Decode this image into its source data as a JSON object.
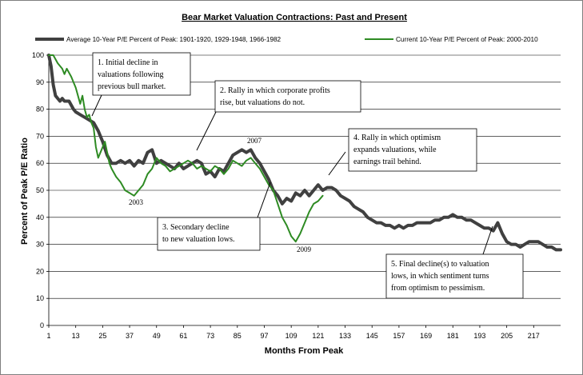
{
  "chart_data": {
    "type": "line",
    "title": "Bear Market Valuation Contractions: Past and Present",
    "xlabel": "Months From Peak",
    "ylabel": "Percent of Peak P/E Ratio",
    "xlim": [
      1,
      229
    ],
    "ylim": [
      0,
      100
    ],
    "grid": true,
    "legend_position": "top",
    "x_ticks": [
      "1",
      "13",
      "25",
      "37",
      "49",
      "61",
      "73",
      "85",
      "97",
      "109",
      "121",
      "133",
      "145",
      "157",
      "169",
      "181",
      "193",
      "205",
      "217"
    ],
    "y_ticks": [
      "0",
      "10",
      "20",
      "30",
      "40",
      "50",
      "60",
      "70",
      "80",
      "90",
      "100"
    ],
    "series": [
      {
        "name": "Average 10-Year P/E Percent of Peak: 1901-1920, 1929-1948, 1966-1982",
        "color": "#404040",
        "points": [
          [
            1,
            100
          ],
          [
            2,
            96
          ],
          [
            3,
            89
          ],
          [
            4,
            85
          ],
          [
            5,
            84
          ],
          [
            6,
            83
          ],
          [
            7,
            84
          ],
          [
            8,
            83
          ],
          [
            10,
            83
          ],
          [
            12,
            80
          ],
          [
            13,
            79
          ],
          [
            15,
            78
          ],
          [
            17,
            77
          ],
          [
            19,
            76
          ],
          [
            21,
            75
          ],
          [
            23,
            72
          ],
          [
            25,
            68
          ],
          [
            27,
            63
          ],
          [
            29,
            60
          ],
          [
            31,
            60
          ],
          [
            33,
            61
          ],
          [
            35,
            60
          ],
          [
            37,
            61
          ],
          [
            39,
            59
          ],
          [
            41,
            61
          ],
          [
            43,
            60
          ],
          [
            45,
            64
          ],
          [
            47,
            65
          ],
          [
            49,
            60
          ],
          [
            51,
            61
          ],
          [
            53,
            60
          ],
          [
            55,
            59
          ],
          [
            57,
            58
          ],
          [
            59,
            60
          ],
          [
            61,
            58
          ],
          [
            63,
            59
          ],
          [
            65,
            60
          ],
          [
            67,
            61
          ],
          [
            69,
            60
          ],
          [
            71,
            56
          ],
          [
            73,
            57
          ],
          [
            75,
            55
          ],
          [
            77,
            58
          ],
          [
            79,
            57
          ],
          [
            81,
            60
          ],
          [
            83,
            63
          ],
          [
            85,
            64
          ],
          [
            87,
            65
          ],
          [
            89,
            64
          ],
          [
            91,
            65
          ],
          [
            93,
            62
          ],
          [
            95,
            60
          ],
          [
            97,
            57
          ],
          [
            99,
            54
          ],
          [
            101,
            50
          ],
          [
            103,
            48
          ],
          [
            105,
            45
          ],
          [
            107,
            47
          ],
          [
            109,
            46
          ],
          [
            111,
            49
          ],
          [
            113,
            48
          ],
          [
            115,
            50
          ],
          [
            117,
            48
          ],
          [
            119,
            50
          ],
          [
            121,
            52
          ],
          [
            123,
            50
          ],
          [
            125,
            51
          ],
          [
            127,
            51
          ],
          [
            129,
            50
          ],
          [
            131,
            48
          ],
          [
            133,
            47
          ],
          [
            135,
            46
          ],
          [
            137,
            44
          ],
          [
            139,
            43
          ],
          [
            141,
            42
          ],
          [
            143,
            40
          ],
          [
            145,
            39
          ],
          [
            147,
            38
          ],
          [
            149,
            38
          ],
          [
            151,
            37
          ],
          [
            153,
            37
          ],
          [
            155,
            36
          ],
          [
            157,
            37
          ],
          [
            159,
            36
          ],
          [
            161,
            37
          ],
          [
            163,
            37
          ],
          [
            165,
            38
          ],
          [
            167,
            38
          ],
          [
            169,
            38
          ],
          [
            171,
            38
          ],
          [
            173,
            39
          ],
          [
            175,
            39
          ],
          [
            177,
            40
          ],
          [
            179,
            40
          ],
          [
            181,
            41
          ],
          [
            183,
            40
          ],
          [
            185,
            40
          ],
          [
            187,
            39
          ],
          [
            189,
            39
          ],
          [
            191,
            38
          ],
          [
            193,
            37
          ],
          [
            195,
            36
          ],
          [
            197,
            36
          ],
          [
            199,
            35
          ],
          [
            201,
            38
          ],
          [
            203,
            34
          ],
          [
            205,
            31
          ],
          [
            207,
            30
          ],
          [
            209,
            30
          ],
          [
            211,
            29
          ],
          [
            213,
            30
          ],
          [
            215,
            31
          ],
          [
            217,
            31
          ],
          [
            219,
            31
          ],
          [
            221,
            30
          ],
          [
            223,
            29
          ],
          [
            225,
            29
          ],
          [
            227,
            28
          ],
          [
            229,
            28
          ]
        ]
      },
      {
        "name": "Current 10-Year P/E Percent of Peak: 2000-2010",
        "color": "#2e8b23",
        "points": [
          [
            1,
            100
          ],
          [
            3,
            100
          ],
          [
            5,
            97
          ],
          [
            7,
            95
          ],
          [
            8,
            93
          ],
          [
            9,
            95
          ],
          [
            11,
            92
          ],
          [
            13,
            88
          ],
          [
            15,
            82
          ],
          [
            16,
            85
          ],
          [
            17,
            80
          ],
          [
            18,
            77
          ],
          [
            19,
            78
          ],
          [
            20,
            75
          ],
          [
            21,
            73
          ],
          [
            22,
            66
          ],
          [
            23,
            62
          ],
          [
            25,
            66
          ],
          [
            26,
            68
          ],
          [
            27,
            64
          ],
          [
            28,
            60
          ],
          [
            29,
            58
          ],
          [
            31,
            55
          ],
          [
            33,
            53
          ],
          [
            35,
            50
          ],
          [
            37,
            49
          ],
          [
            39,
            48
          ],
          [
            41,
            50
          ],
          [
            43,
            52
          ],
          [
            45,
            56
          ],
          [
            47,
            58
          ],
          [
            49,
            62
          ],
          [
            51,
            60
          ],
          [
            53,
            59
          ],
          [
            55,
            57
          ],
          [
            57,
            58
          ],
          [
            59,
            59
          ],
          [
            61,
            60
          ],
          [
            63,
            61
          ],
          [
            65,
            60
          ],
          [
            67,
            58
          ],
          [
            69,
            59
          ],
          [
            71,
            58
          ],
          [
            73,
            57
          ],
          [
            75,
            59
          ],
          [
            77,
            58
          ],
          [
            79,
            56
          ],
          [
            81,
            58
          ],
          [
            83,
            61
          ],
          [
            85,
            60
          ],
          [
            87,
            59
          ],
          [
            89,
            61
          ],
          [
            91,
            62
          ],
          [
            93,
            60
          ],
          [
            95,
            58
          ],
          [
            97,
            55
          ],
          [
            99,
            52
          ],
          [
            101,
            50
          ],
          [
            103,
            45
          ],
          [
            105,
            40
          ],
          [
            107,
            37
          ],
          [
            109,
            33
          ],
          [
            111,
            31
          ],
          [
            113,
            34
          ],
          [
            115,
            38
          ],
          [
            117,
            42
          ],
          [
            119,
            45
          ],
          [
            121,
            46
          ],
          [
            123,
            48
          ]
        ]
      }
    ],
    "annotations": [
      {
        "lines": [
          "1.  Initial decline in",
          "valuations following",
          "previous bull market."
        ]
      },
      {
        "lines": [
          "2.  Rally in which corporate profits",
          "rise, but valuations do not."
        ]
      },
      {
        "lines": [
          "3.  Secondary decline",
          "to new valuation lows."
        ]
      },
      {
        "lines": [
          "4.  Rally in which optimism",
          "expands valuations, while",
          "earnings trail behind."
        ]
      },
      {
        "lines": [
          "5.  Final decline(s) to valuation",
          "lows, in which sentiment turns",
          "from optimism to pessimism."
        ]
      }
    ],
    "year_labels": [
      "2007",
      "2003",
      "2009"
    ]
  }
}
